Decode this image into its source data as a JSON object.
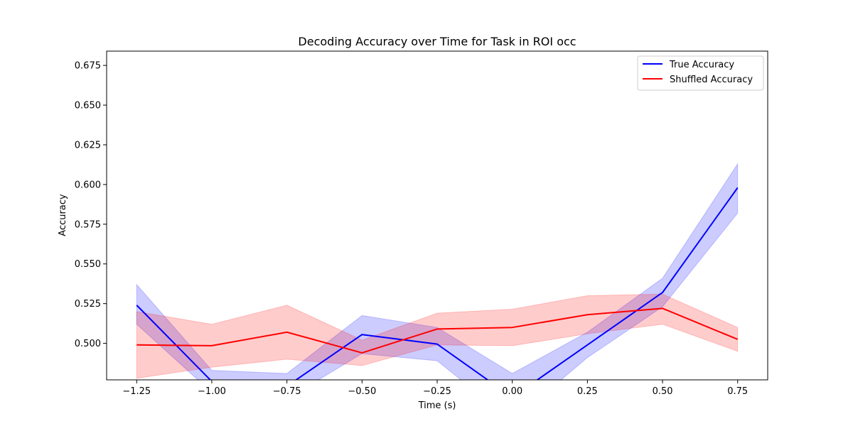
{
  "chart_data": {
    "type": "line",
    "title": "Decoding Accuracy over Time for Task in ROI occ",
    "xlabel": "Time (s)",
    "ylabel": "Accuracy",
    "xlim": [
      -1.35,
      0.85
    ],
    "ylim": [
      0.477,
      0.684
    ],
    "xticks": [
      -1.25,
      -1.0,
      -0.75,
      -0.5,
      -0.25,
      0.0,
      0.25,
      0.5,
      0.75
    ],
    "xtick_labels": [
      "−1.25",
      "−1.00",
      "−0.75",
      "−0.50",
      "−0.25",
      "0.00",
      "0.25",
      "0.50",
      "0.75"
    ],
    "yticks": [
      0.5,
      0.525,
      0.55,
      0.575,
      0.6,
      0.625,
      0.65,
      0.675
    ],
    "ytick_labels": [
      "0.500",
      "0.525",
      "0.550",
      "0.575",
      "0.600",
      "0.625",
      "0.650",
      "0.675"
    ],
    "x": [
      -1.25,
      -1.0,
      -0.75,
      -0.5,
      -0.25,
      0.0,
      0.25,
      0.5,
      0.75
    ],
    "series": [
      {
        "name": "True Accuracy",
        "color": "#0000ff",
        "band_color": "#0000ff",
        "values": [
          0.524,
          0.476,
          0.473,
          0.5055,
          0.4995,
          0.466,
          0.499,
          0.532,
          0.598
        ],
        "lower": [
          0.512,
          0.469,
          0.465,
          0.4935,
          0.489,
          0.451,
          0.491,
          0.523,
          0.582
        ],
        "upper": [
          0.537,
          0.483,
          0.481,
          0.5175,
          0.51,
          0.481,
          0.507,
          0.541,
          0.613
        ]
      },
      {
        "name": "Shuffled Accuracy",
        "color": "#ff0000",
        "band_color": "#ff0000",
        "values": [
          0.499,
          0.4985,
          0.507,
          0.494,
          0.509,
          0.51,
          0.518,
          0.522,
          0.5025
        ],
        "lower": [
          0.478,
          0.485,
          0.49,
          0.486,
          0.499,
          0.4985,
          0.506,
          0.512,
          0.495
        ],
        "upper": [
          0.52,
          0.512,
          0.524,
          0.502,
          0.519,
          0.5215,
          0.53,
          0.531,
          0.51
        ]
      }
    ],
    "grid": false,
    "legend": "top-right"
  }
}
